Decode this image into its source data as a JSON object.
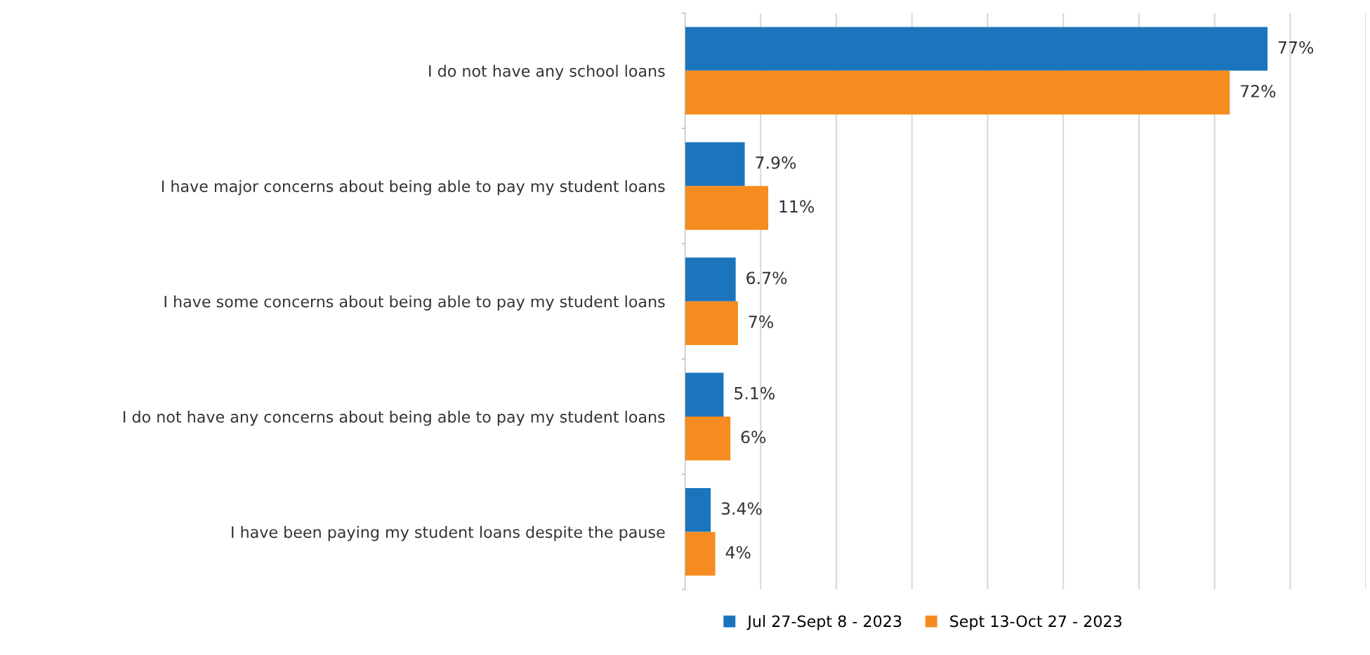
{
  "chart_data": {
    "type": "bar",
    "orientation": "horizontal",
    "categories": [
      "I do not have any school loans",
      "I have major concerns about being able to pay my student loans",
      "I have some concerns about being able to pay my student loans",
      "I do not have any concerns about being able to pay my student loans",
      "I have been paying my student loans despite the pause"
    ],
    "series": [
      {
        "name": "Jul 27-Sept 8 - 2023",
        "color": "#1c75bc",
        "values": [
          77,
          7.9,
          6.7,
          5.1,
          3.4
        ],
        "value_labels": [
          "77%",
          "7.9%",
          "6.7%",
          "5.1%",
          "3.4%"
        ]
      },
      {
        "name": "Sept 13-Oct 27 - 2023",
        "color": "#f68b1f",
        "values": [
          72,
          11,
          7,
          6,
          4
        ],
        "value_labels": [
          "72%",
          "11%",
          "7%",
          "6%",
          "4%"
        ]
      }
    ],
    "xlim": [
      0,
      90
    ],
    "xticks": [
      {
        "value": 0,
        "label": null
      },
      {
        "value": 10,
        "label": null
      },
      {
        "value": 20,
        "label": null
      },
      {
        "value": 30,
        "label": null
      },
      {
        "value": 40,
        "label": null
      },
      {
        "value": 50,
        "label": null
      },
      {
        "value": 60,
        "label": null
      },
      {
        "value": 70,
        "label": null
      },
      {
        "value": 80,
        "label": null
      },
      {
        "value": 90,
        "label": null
      }
    ],
    "tick_labels": "y",
    "grid": "x",
    "legend": "bottom"
  }
}
